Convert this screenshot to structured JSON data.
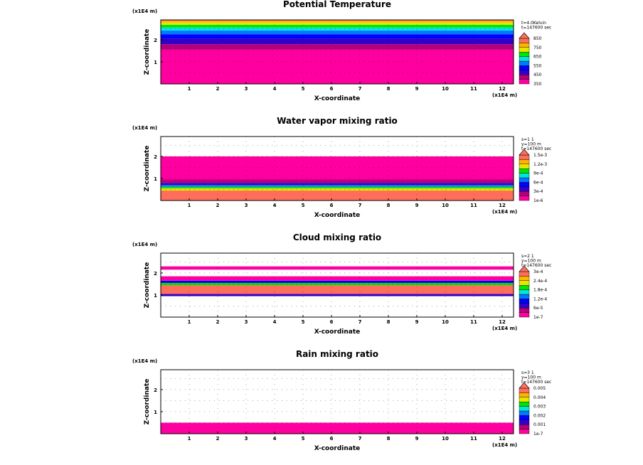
{
  "chart_data": [
    {
      "type": "heatmap",
      "title": "Potential Temperature",
      "xlabel": "X-coordinate",
      "ylabel": "Z-coordinate",
      "x_scale_label": "(x1E4 m)",
      "z_scale_label": "(x1E4 m)",
      "x_ticks": [
        "1",
        "2",
        "3",
        "4",
        "5",
        "6",
        "7",
        "8",
        "9",
        "10",
        "11",
        "12"
      ],
      "z_ticks": [
        "1",
        "2"
      ],
      "xlim": [
        0,
        12.4
      ],
      "zlim": [
        0,
        2.9
      ],
      "info_lines": [
        "t=4.0Kelvin",
        "t=147600 sec"
      ],
      "colorbar": {
        "labels": [
          "350",
          "450",
          "550",
          "650",
          "750",
          "850"
        ],
        "colors": [
          "#ff00a0",
          "#b4007a",
          "#3200c8",
          "#0000ff",
          "#0078ff",
          "#00e6dc",
          "#00e600",
          "#e6e600",
          "#ffb400",
          "#ff6e5a"
        ],
        "extend_top": true
      },
      "field": {
        "bands": [
          {
            "z_bottom": 0.0,
            "z_top": 1.55,
            "level": 0
          },
          {
            "z_bottom": 1.55,
            "z_top": 1.8,
            "level": 1
          },
          {
            "z_bottom": 1.8,
            "z_top": 2.05,
            "level": 2
          },
          {
            "z_bottom": 2.05,
            "z_top": 2.25,
            "level": 3
          },
          {
            "z_bottom": 2.25,
            "z_top": 2.42,
            "level": 4
          },
          {
            "z_bottom": 2.42,
            "z_top": 2.56,
            "level": 5
          },
          {
            "z_bottom": 2.56,
            "z_top": 2.68,
            "level": 6
          },
          {
            "z_bottom": 2.68,
            "z_top": 2.78,
            "level": 7
          },
          {
            "z_bottom": 2.78,
            "z_top": 2.86,
            "level": 8
          },
          {
            "z_bottom": 2.86,
            "z_top": 2.9,
            "level": 9
          }
        ]
      }
    },
    {
      "type": "heatmap",
      "title": "Water vapor mixing ratio",
      "xlabel": "X-coordinate",
      "ylabel": "Z-coordinate",
      "x_scale_label": "(x1E4 m)",
      "z_scale_label": "(x1E4 m)",
      "x_ticks": [
        "1",
        "2",
        "3",
        "4",
        "5",
        "6",
        "7",
        "8",
        "9",
        "10",
        "11",
        "12"
      ],
      "z_ticks": [
        "1",
        "2"
      ],
      "xlim": [
        0,
        12.4
      ],
      "zlim": [
        0,
        2.9
      ],
      "info_lines": [
        "s=1 1",
        "y=100 m",
        "t=147600 sec"
      ],
      "colorbar": {
        "labels": [
          "1e-6",
          "3e-4",
          "6e-4",
          "9e-4",
          "1.2e-3",
          "1.5e-3"
        ],
        "colors": [
          "#ff00a0",
          "#b4007a",
          "#3200c8",
          "#0000ff",
          "#0078ff",
          "#00e6dc",
          "#00e600",
          "#e6e600",
          "#ffb400",
          "#ff6e5a"
        ],
        "extend_top": true
      },
      "field": {
        "bands": [
          {
            "z_bottom": 0.0,
            "z_top": 0.45,
            "level": 9
          },
          {
            "z_bottom": 0.45,
            "z_top": 0.55,
            "level": 7
          },
          {
            "z_bottom": 0.55,
            "z_top": 0.62,
            "level": 6
          },
          {
            "z_bottom": 0.62,
            "z_top": 0.7,
            "level": 4
          },
          {
            "z_bottom": 0.7,
            "z_top": 0.8,
            "level": 2
          },
          {
            "z_bottom": 0.8,
            "z_top": 0.95,
            "level": 1
          },
          {
            "z_bottom": 0.95,
            "z_top": 2.0,
            "level": 0
          }
        ]
      }
    },
    {
      "type": "heatmap",
      "title": "Cloud mixing ratio",
      "xlabel": "X-coordinate",
      "ylabel": "Z-coordinate",
      "x_scale_label": "(x1E4 m)",
      "z_scale_label": "(x1E4 m)",
      "x_ticks": [
        "1",
        "2",
        "3",
        "4",
        "5",
        "6",
        "7",
        "8",
        "9",
        "10",
        "11",
        "12"
      ],
      "z_ticks": [
        "1",
        "2"
      ],
      "xlim": [
        0,
        12.4
      ],
      "zlim": [
        0,
        2.9
      ],
      "info_lines": [
        "s=2 1",
        "y=100 m",
        "t=147600 sec"
      ],
      "colorbar": {
        "labels": [
          "1e-7",
          "6e-5",
          "1.2e-4",
          "1.8e-4",
          "2.4e-4",
          "3e-4"
        ],
        "colors": [
          "#ff00a0",
          "#b4007a",
          "#3200c8",
          "#0000ff",
          "#0078ff",
          "#00e6dc",
          "#00e600",
          "#e6e600",
          "#ffb400",
          "#ff6e5a"
        ],
        "extend_top": true
      },
      "field": {
        "bands": [
          {
            "z_bottom": 0.95,
            "z_top": 1.05,
            "level": 2
          },
          {
            "z_bottom": 1.05,
            "z_top": 1.45,
            "level": 9
          },
          {
            "z_bottom": 1.45,
            "z_top": 1.55,
            "level": 6
          },
          {
            "z_bottom": 1.55,
            "z_top": 1.65,
            "level": 3
          },
          {
            "z_bottom": 1.65,
            "z_top": 1.85,
            "level": 0
          },
          {
            "z_bottom": 2.15,
            "z_top": 2.3,
            "level": 0
          }
        ]
      }
    },
    {
      "type": "heatmap",
      "title": "Rain mixing ratio",
      "xlabel": "X-coordinate",
      "ylabel": "Z-coordinate",
      "x_scale_label": "(x1E4 m)",
      "z_scale_label": "(x1E4 m)",
      "x_ticks": [
        "1",
        "2",
        "3",
        "4",
        "5",
        "6",
        "7",
        "8",
        "9",
        "10",
        "11",
        "12"
      ],
      "z_ticks": [
        "1",
        "2"
      ],
      "xlim": [
        0,
        12.4
      ],
      "zlim": [
        0,
        2.9
      ],
      "info_lines": [
        "s=3 1",
        "y=100 m",
        "t=147600 sec"
      ],
      "colorbar": {
        "labels": [
          "1e-7",
          "0.001",
          "0.002",
          "0.003",
          "0.004",
          "0.005"
        ],
        "colors": [
          "#ff00a0",
          "#b4007a",
          "#3200c8",
          "#0000ff",
          "#0078ff",
          "#00e6dc",
          "#00e600",
          "#e6e600",
          "#ffb400",
          "#ff6e5a"
        ],
        "extend_top": true
      },
      "field": {
        "bands": [
          {
            "z_bottom": 0.0,
            "z_top": 0.5,
            "level": 0
          }
        ]
      }
    }
  ]
}
